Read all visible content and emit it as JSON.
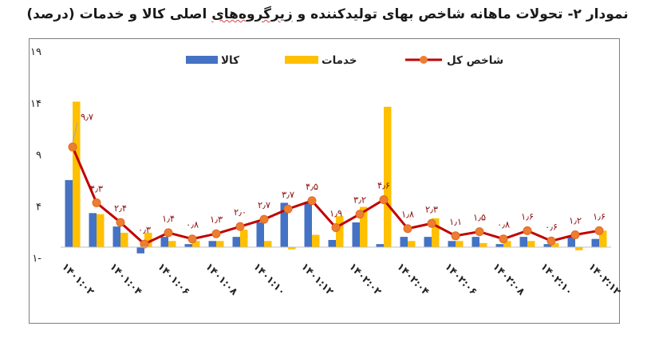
{
  "title": {
    "prefix": "نمودار ۲- تحولات ماهانه شاخص بهای تولیدکننده و ",
    "underlined": "زیرگروه‌های",
    "suffix": " اصلی کالا و خدمات (درصد)"
  },
  "chart_data": {
    "type": "bar",
    "legend_position": "top",
    "colors": {
      "goods": "#4472c4",
      "services": "#ffc000",
      "total_line": "#c00000",
      "total_marker": "#ed7d31"
    },
    "yticks": [
      "۱-",
      "۴",
      "۹",
      "۱۴",
      "۱۹"
    ],
    "ylim": [
      -1,
      19
    ],
    "categories": [
      "1401:02",
      "1401:03",
      "1401:04",
      "1401:05",
      "1401:06",
      "1401:07",
      "1401:08",
      "1401:09",
      "1401:10",
      "1401:11",
      "1401:12",
      "1402:01",
      "1402:02",
      "1402:03",
      "1402:04",
      "1402:05",
      "1402:06",
      "1402:07",
      "1402:08",
      "1402:09",
      "1402:10",
      "1402:11",
      "1402:12"
    ],
    "xticklabels": [
      "۱۴۰۱:۰۲",
      "۱۴۰۱:۰۴",
      "۱۴۰۱:۰۶",
      "۱۴۰۱:۰۸",
      "۱۴۰۱:۱۰",
      "۱۴۰۱:۱۲",
      "۱۴۰۲:۰۲",
      "۱۴۰۲:۰۴",
      "۱۴۰۲:۰۶",
      "۱۴۰۲:۰۸",
      "۱۴۰۲:۱۰",
      "۱۴۰۲:۱۲"
    ],
    "series": [
      {
        "name": "کالا",
        "key": "goods",
        "values": [
          6.5,
          3.3,
          2.0,
          -0.6,
          1.0,
          0.3,
          0.6,
          1.0,
          2.4,
          4.3,
          4.4,
          0.7,
          2.4,
          0.3,
          1.0,
          1.0,
          0.6,
          1.0,
          0.3,
          1.0,
          0.3,
          1.0,
          0.8
        ]
      },
      {
        "name": "خدمات",
        "key": "services",
        "values": [
          14.1,
          3.2,
          1.4,
          1.4,
          0.6,
          0.6,
          0.6,
          1.7,
          0.6,
          -0.2,
          1.2,
          3.0,
          3.9,
          13.6,
          0.6,
          2.8,
          0.6,
          0.4,
          0.6,
          0.6,
          0.4,
          -0.3,
          1.6
        ]
      },
      {
        "name": "شاخص کل",
        "key": "total",
        "values": [
          9.7,
          4.3,
          2.4,
          0.3,
          1.4,
          0.8,
          1.3,
          2.0,
          2.7,
          3.7,
          4.5,
          1.9,
          3.2,
          4.6,
          1.8,
          2.3,
          1.1,
          1.5,
          0.8,
          1.6,
          0.6,
          1.2,
          1.6
        ],
        "labels": [
          "۹٫۷",
          "۴٫۳",
          "۲٫۴",
          "۰٫۳",
          "۱٫۴",
          "۰٫۸",
          "۱٫۳",
          "۲٫۰",
          "۲٫۷",
          "۳٫۷",
          "۴٫۵",
          "۱٫۹",
          "۳٫۲",
          "۴٫۶",
          "۱٫۸",
          "۲٫۳",
          "۱٫۱",
          "۱٫۵",
          "۰٫۸",
          "۱٫۶",
          "۰٫۶",
          "۱٫۲",
          "۱٫۶"
        ]
      }
    ]
  }
}
